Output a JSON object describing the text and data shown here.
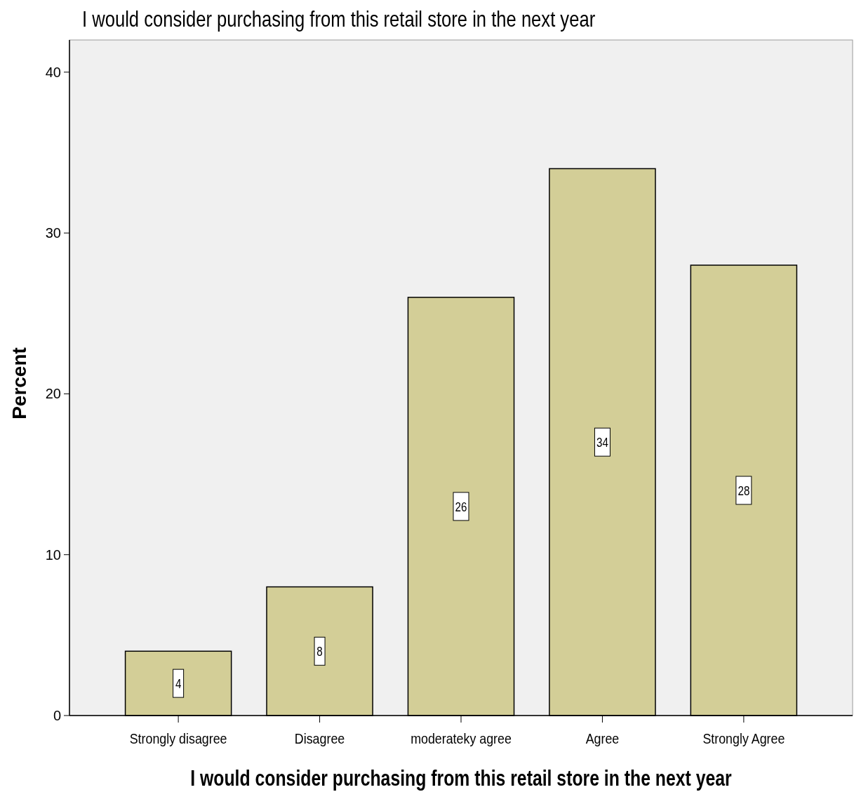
{
  "chart_data": {
    "type": "bar",
    "title": "I would consider purchasing from this retail store in the next year",
    "xlabel": "I would consider purchasing from this retail store in the next year",
    "ylabel": "Percent",
    "categories": [
      "Strongly disagree",
      "Disagree",
      "moderateky agree",
      "Agree",
      "Strongly Agree"
    ],
    "values": [
      4,
      8,
      26,
      34,
      28
    ],
    "color": "#d3ce97",
    "ylim": [
      0,
      42
    ],
    "yticks": [
      0,
      10,
      20,
      30,
      40
    ],
    "grid": false,
    "data_labels": true
  }
}
